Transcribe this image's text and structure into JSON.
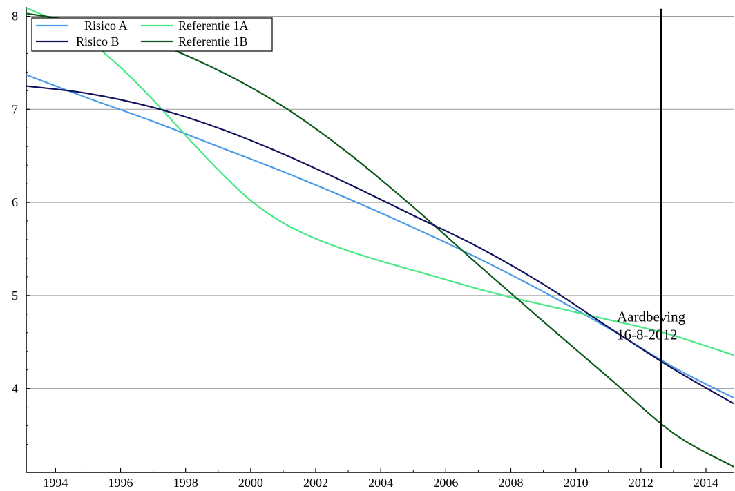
{
  "chart_data": {
    "type": "line",
    "title": "",
    "xlabel": "",
    "ylabel": "",
    "xlim": [
      1993.1,
      2014.85
    ],
    "ylim": [
      3.1,
      8.1
    ],
    "x_ticks": [
      1994,
      1996,
      1998,
      2000,
      2002,
      2004,
      2006,
      2008,
      2010,
      2012,
      2014
    ],
    "y_ticks": [
      4,
      5,
      6,
      7,
      8
    ],
    "grid": "horizontal",
    "legend_position": "top-left",
    "series": [
      {
        "name": "Risico A",
        "color": "#4a9ae8",
        "x": [
          1993.1,
          1995,
          1997,
          1999,
          2001,
          2003,
          2005,
          2007,
          2009,
          2011,
          2013,
          2014.85
        ],
        "y": [
          7.37,
          7.12,
          6.87,
          6.6,
          6.33,
          6.04,
          5.73,
          5.4,
          5.04,
          4.65,
          4.23,
          3.9
        ]
      },
      {
        "name": "Risico B",
        "color": "#12125e",
        "x": [
          1993.1,
          1995,
          1997,
          1999,
          2001,
          2003,
          2005,
          2007,
          2009,
          2011,
          2013,
          2014.85
        ],
        "y": [
          7.25,
          7.17,
          7.02,
          6.8,
          6.52,
          6.2,
          5.86,
          5.52,
          5.12,
          4.66,
          4.21,
          3.84
        ]
      },
      {
        "name": "Referentie 1A",
        "color": "#45e882",
        "x": [
          1993.1,
          1994,
          1995,
          1996,
          1997,
          1998,
          1999,
          2000,
          2001,
          2002,
          2003,
          2004,
          2005,
          2006,
          2007,
          2008,
          2009,
          2010,
          2011,
          2012,
          2013,
          2014.85
        ],
        "y": [
          8.09,
          7.95,
          7.74,
          7.45,
          7.1,
          6.72,
          6.35,
          6.02,
          5.78,
          5.61,
          5.48,
          5.37,
          5.27,
          5.17,
          5.07,
          4.98,
          4.9,
          4.82,
          4.74,
          4.66,
          4.57,
          4.36
        ]
      },
      {
        "name": "Referentie 1B",
        "color": "#0b5a1c",
        "x": [
          1993.1,
          1995,
          1997,
          1999,
          2001,
          2003,
          2005,
          2007,
          2009,
          2011,
          2013,
          2014.85
        ],
        "y": [
          8.03,
          7.92,
          7.72,
          7.42,
          7.03,
          6.53,
          5.95,
          5.33,
          4.72,
          4.12,
          3.52,
          3.16
        ]
      }
    ],
    "vline": {
      "x": 2012.62,
      "color": "#000000"
    },
    "annotation": {
      "lines": [
        "Aardbeving",
        "16-8-2012"
      ],
      "x": 2012.62,
      "y": 4.72
    }
  }
}
